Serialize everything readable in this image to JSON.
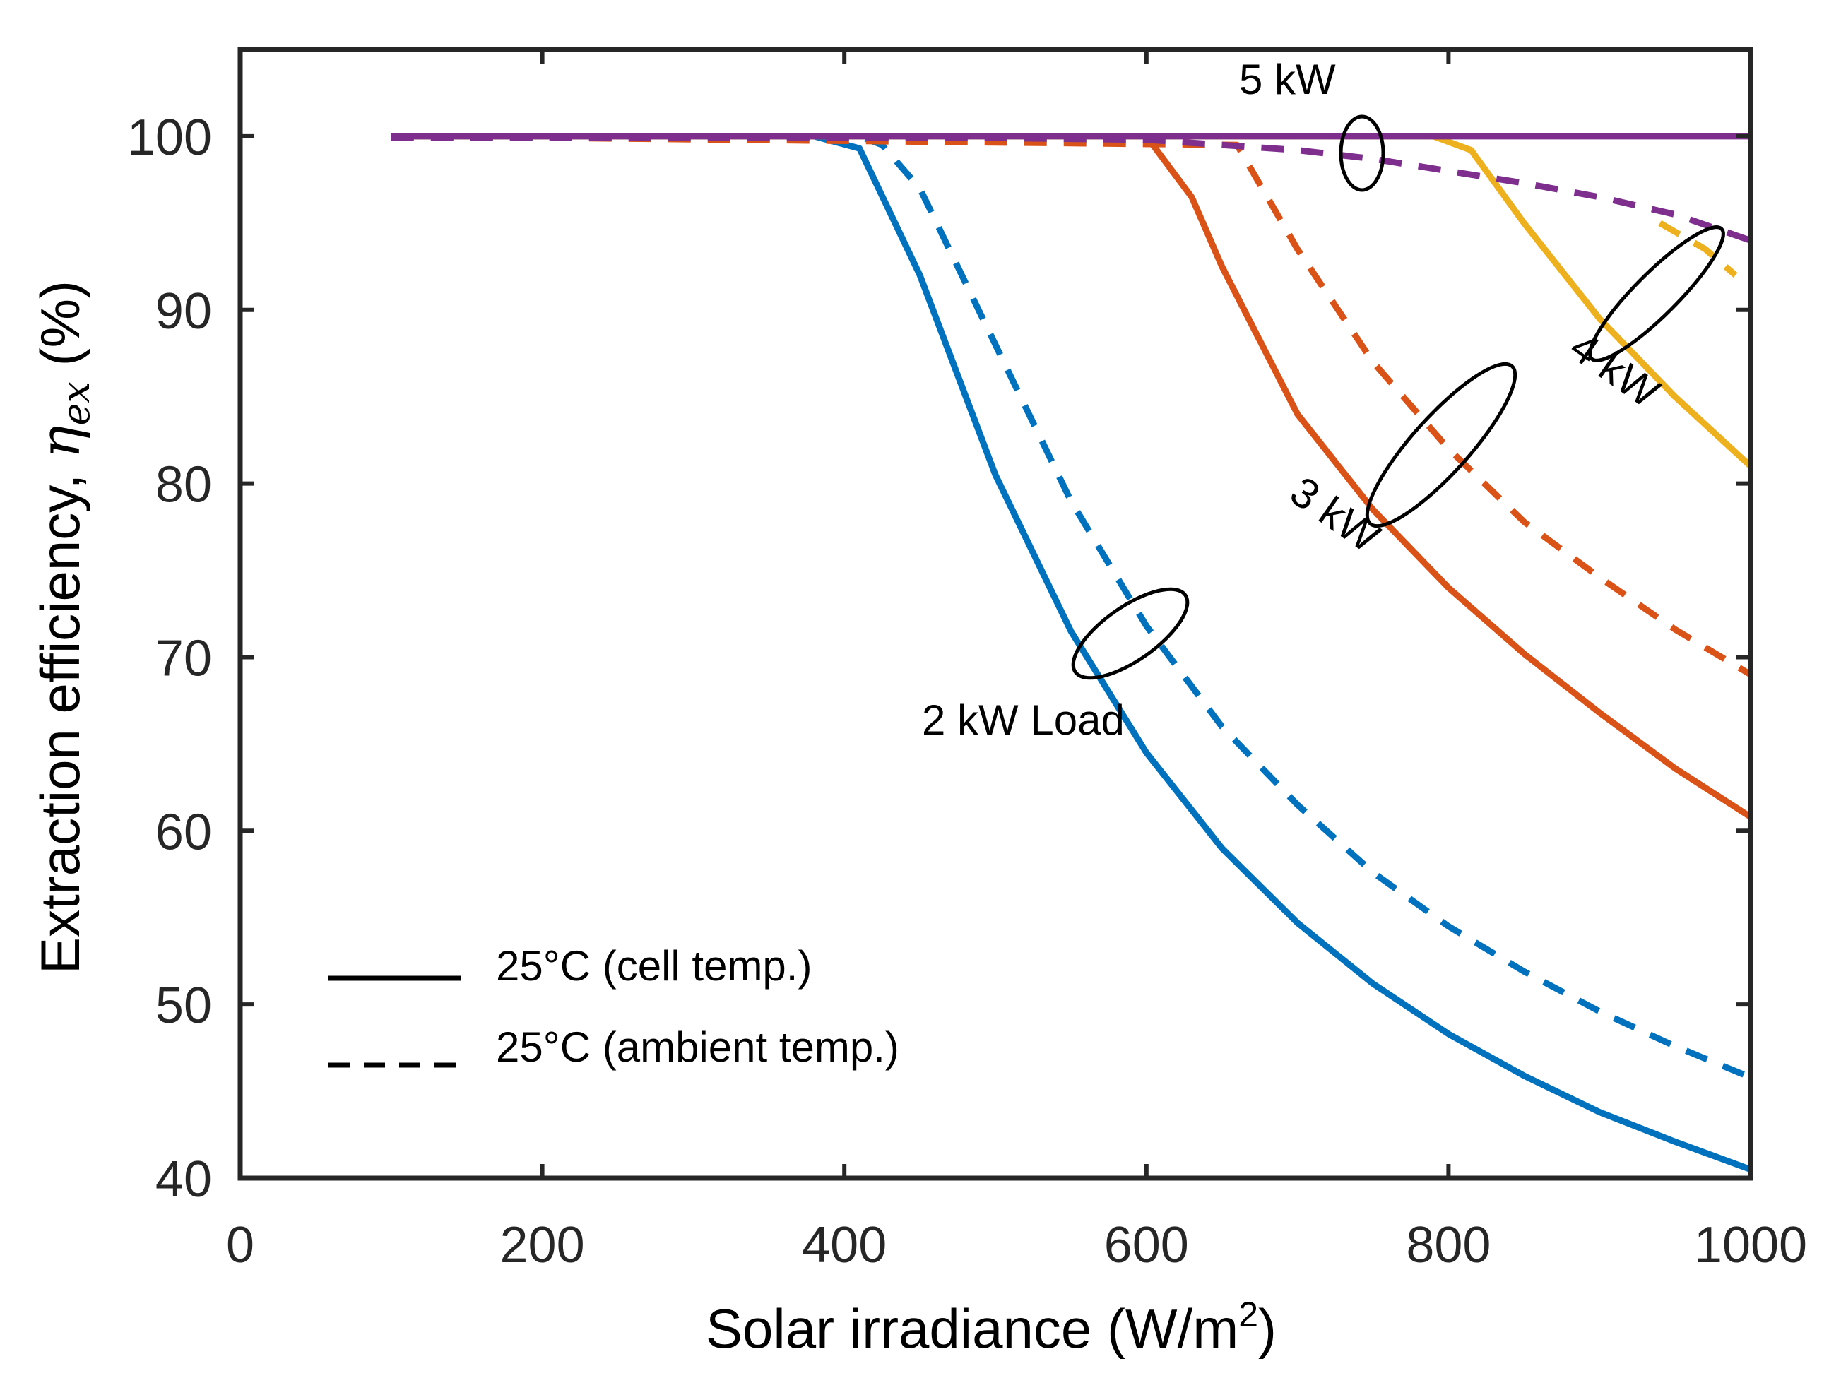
{
  "chart_data": {
    "type": "line",
    "title": "",
    "xlabel": "Solar irradiance (W/m",
    "xlabel_sup": "2",
    "xlabel_suffix": ")",
    "ylabel_text": "Extraction efficiency, ",
    "ylabel_symbol": "η",
    "ylabel_sub": "ex",
    "ylabel_unit": " (%)",
    "xlim": [
      0,
      1000
    ],
    "ylim": [
      40,
      105
    ],
    "xticks": [
      0,
      200,
      400,
      600,
      800,
      1000
    ],
    "yticks": [
      40,
      50,
      60,
      70,
      80,
      90,
      100
    ],
    "grid": false,
    "colors": {
      "2kW": "#0072BD",
      "3kW": "#D95319",
      "4kW": "#EDB120",
      "5kW": "#7E2F8E",
      "axis": "#262626"
    },
    "series": [
      {
        "name": "2 kW cell",
        "load": "2kW",
        "style": "solid",
        "x": [
          100,
          380,
          410,
          450,
          500,
          550,
          600,
          650,
          700,
          750,
          800,
          850,
          900,
          950,
          1000
        ],
        "y": [
          100,
          100,
          99.3,
          92,
          80.5,
          71.5,
          64.5,
          59,
          54.7,
          51.2,
          48.3,
          45.9,
          43.8,
          42.1,
          40.5
        ]
      },
      {
        "name": "2 kW ambient",
        "load": "2kW",
        "style": "dashed",
        "x": [
          100,
          410,
          425,
          450,
          500,
          550,
          600,
          650,
          700,
          750,
          800,
          850,
          900,
          950,
          1000
        ],
        "y": [
          100,
          100,
          99.5,
          97,
          88,
          79,
          71.8,
          66,
          61.5,
          57.6,
          54.5,
          51.9,
          49.6,
          47.6,
          45.8
        ]
      },
      {
        "name": "3 kW cell",
        "load": "3kW",
        "style": "solid",
        "x": [
          100,
          600,
          630,
          650,
          700,
          750,
          800,
          850,
          900,
          950,
          1000
        ],
        "y": [
          100,
          100,
          96.5,
          92.5,
          84,
          78.5,
          74,
          70.2,
          66.8,
          63.6,
          60.8
        ]
      },
      {
        "name": "3 kW ambient",
        "load": "3kW",
        "style": "dashed",
        "x": [
          100,
          660,
          700,
          750,
          800,
          850,
          900,
          950,
          1000
        ],
        "y": [
          100,
          99.5,
          93.5,
          87,
          82,
          77.8,
          74.6,
          71.6,
          69
        ]
      },
      {
        "name": "4 kW cell",
        "load": "4kW",
        "style": "solid",
        "x": [
          100,
          790,
          815,
          850,
          900,
          950,
          1000
        ],
        "y": [
          100,
          100,
          99.2,
          95,
          89.5,
          85,
          81
        ]
      },
      {
        "name": "4 kW ambient",
        "load": "4kW",
        "style": "dashed",
        "x": [
          940,
          970,
          990
        ],
        "y": [
          95,
          93.5,
          92
        ]
      },
      {
        "name": "5 kW cell",
        "load": "5kW",
        "style": "solid",
        "x": [
          100,
          1000
        ],
        "y": [
          100,
          100
        ]
      },
      {
        "name": "5 kW ambient",
        "load": "5kW",
        "style": "dashed",
        "x": [
          100,
          500,
          600,
          650,
          700,
          750,
          800,
          850,
          900,
          950,
          1000
        ],
        "y": [
          99.9,
          99.9,
          99.8,
          99.5,
          99.2,
          98.7,
          98,
          97.3,
          96.5,
          95.5,
          94
        ]
      }
    ],
    "annotations": [
      {
        "text": "2 kW Load",
        "x": 460,
        "y": 66
      },
      {
        "text": "3 kW",
        "x": 700,
        "y": 77
      },
      {
        "text": "4 kW",
        "x": 880,
        "y": 84
      },
      {
        "text": "5 kW",
        "x": 660,
        "y": 103
      }
    ],
    "legend": {
      "placement": "bottom-left",
      "entries": [
        {
          "label": "25°C (cell temp.)",
          "style": "solid"
        },
        {
          "label": "25°C (ambient temp.)",
          "style": "dashed"
        }
      ]
    }
  }
}
